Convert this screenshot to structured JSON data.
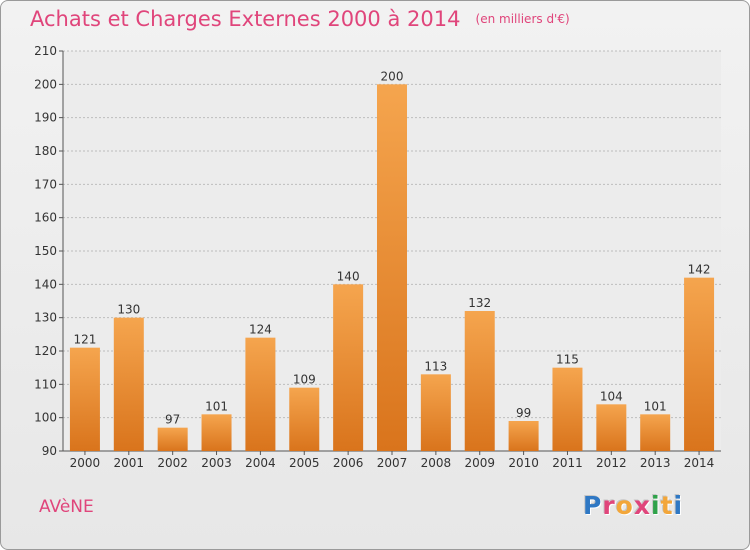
{
  "header": {
    "title": "Achats et Charges Externes 2000 à 2014",
    "unit": "(en milliers d'€)"
  },
  "footer": {
    "commune": "AVèNE",
    "brand": "Proxiti",
    "brand_letters": [
      {
        "ch": "P",
        "color": "#2f78c4"
      },
      {
        "ch": "r",
        "color": "#e0457b"
      },
      {
        "ch": "o",
        "color": "#f2a63a"
      },
      {
        "ch": "x",
        "color": "#e0457b"
      },
      {
        "ch": "i",
        "color": "#2fa24a"
      },
      {
        "ch": "t",
        "color": "#f2a63a"
      },
      {
        "ch": "i",
        "color": "#2f78c4"
      }
    ]
  },
  "colors": {
    "bar_light": "#f5a54e",
    "bar_dark": "#d9741c",
    "grid": "#bdbdbd",
    "axis_text": "#333333",
    "title": "#e0457b"
  },
  "chart_data": {
    "type": "bar",
    "title": "Achats et Charges Externes 2000 à 2014",
    "subtitle": "(en milliers d'€)",
    "xlabel": "",
    "ylabel": "",
    "categories": [
      "2000",
      "2001",
      "2002",
      "2003",
      "2004",
      "2005",
      "2006",
      "2007",
      "2008",
      "2009",
      "2010",
      "2011",
      "2012",
      "2013",
      "2014"
    ],
    "values": [
      121,
      130,
      97,
      101,
      124,
      109,
      140,
      200,
      113,
      132,
      99,
      115,
      104,
      101,
      142
    ],
    "ylim": [
      90,
      210
    ],
    "yticks": [
      90,
      100,
      110,
      120,
      130,
      140,
      150,
      160,
      170,
      180,
      190,
      200,
      210
    ],
    "grid": true,
    "data_labels": true
  }
}
